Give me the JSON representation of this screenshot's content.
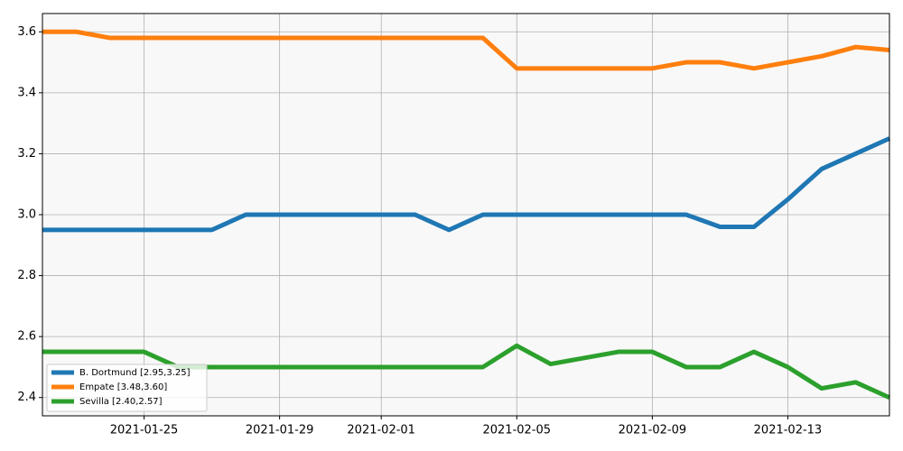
{
  "chart_data": {
    "type": "line",
    "x": [
      "2021-01-22",
      "2021-01-23",
      "2021-01-24",
      "2021-01-25",
      "2021-01-26",
      "2021-01-27",
      "2021-01-28",
      "2021-01-29",
      "2021-01-30",
      "2021-01-31",
      "2021-02-01",
      "2021-02-02",
      "2021-02-03",
      "2021-02-04",
      "2021-02-05",
      "2021-02-06",
      "2021-02-07",
      "2021-02-08",
      "2021-02-09",
      "2021-02-10",
      "2021-02-11",
      "2021-02-12",
      "2021-02-13",
      "2021-02-14",
      "2021-02-15",
      "2021-02-16"
    ],
    "series": [
      {
        "name": "B. Dortmund [2.95,3.25]",
        "color": "#1f77b4",
        "values": [
          2.95,
          2.95,
          2.95,
          2.95,
          2.95,
          2.95,
          3.0,
          3.0,
          3.0,
          3.0,
          3.0,
          3.0,
          2.95,
          3.0,
          3.0,
          3.0,
          3.0,
          3.0,
          3.0,
          3.0,
          2.96,
          2.96,
          3.05,
          3.15,
          3.2,
          3.25
        ]
      },
      {
        "name": "Empate [3.48,3.60]",
        "color": "#ff7f0e",
        "values": [
          3.6,
          3.6,
          3.58,
          3.58,
          3.58,
          3.58,
          3.58,
          3.58,
          3.58,
          3.58,
          3.58,
          3.58,
          3.58,
          3.58,
          3.48,
          3.48,
          3.48,
          3.48,
          3.48,
          3.5,
          3.5,
          3.48,
          3.5,
          3.52,
          3.55,
          3.54
        ]
      },
      {
        "name": "Sevilla [2.40,2.57]",
        "color": "#2ca02c",
        "values": [
          2.55,
          2.55,
          2.55,
          2.55,
          2.5,
          2.5,
          2.5,
          2.5,
          2.5,
          2.5,
          2.5,
          2.5,
          2.5,
          2.5,
          2.57,
          2.51,
          2.53,
          2.55,
          2.55,
          2.5,
          2.5,
          2.55,
          2.5,
          2.43,
          2.45,
          2.4
        ]
      }
    ],
    "xlim": [
      "2021-01-22",
      "2021-02-16"
    ],
    "xticks": [
      "2021-01-25",
      "2021-01-29",
      "2021-02-01",
      "2021-02-05",
      "2021-02-09",
      "2021-02-13"
    ],
    "ylim": [
      2.34,
      3.66
    ],
    "yticks": [
      2.4,
      2.6,
      2.8,
      {
        "value": 3,
        "label": "3.0"
      },
      3.2,
      3.4,
      3.6
    ],
    "grid": true,
    "legend": "lower left"
  }
}
